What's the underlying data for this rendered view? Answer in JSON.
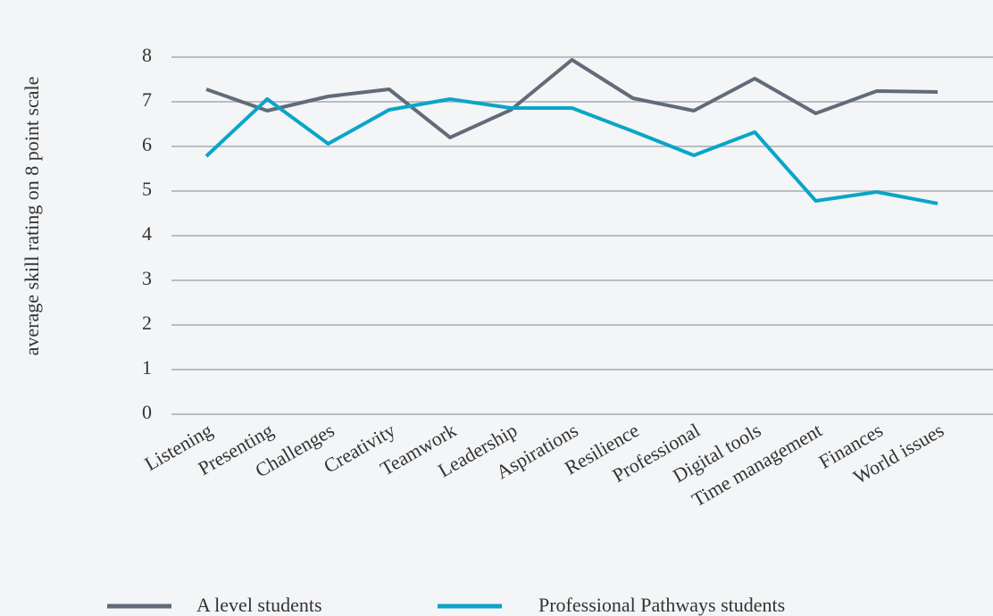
{
  "chart_data": {
    "type": "line",
    "y_label": "average skill rating on 8 point scale",
    "categories": [
      "Listening",
      "Presenting",
      "Challenges",
      "Creativity",
      "Teamwork",
      "Leadership",
      "Aspirations",
      "Resilience",
      "Professional",
      "Digital tools",
      "Time management",
      "Finances",
      "World issues"
    ],
    "series": [
      {
        "name": "A level students",
        "color": "#626b78",
        "values": [
          7.28,
          6.8,
          7.12,
          7.28,
          6.2,
          6.82,
          7.94,
          7.08,
          6.8,
          7.52,
          6.74,
          7.24,
          7.22
        ]
      },
      {
        "name": "Professional Pathways students",
        "color": "#0aa5c8",
        "values": [
          5.78,
          7.06,
          6.06,
          6.82,
          7.06,
          6.86,
          6.86,
          6.34,
          5.8,
          6.32,
          4.78,
          4.98,
          4.72
        ]
      }
    ],
    "ylim": [
      0,
      8
    ],
    "yticks": [
      0,
      1,
      2,
      3,
      4,
      5,
      6,
      7,
      8
    ],
    "grid": true
  }
}
